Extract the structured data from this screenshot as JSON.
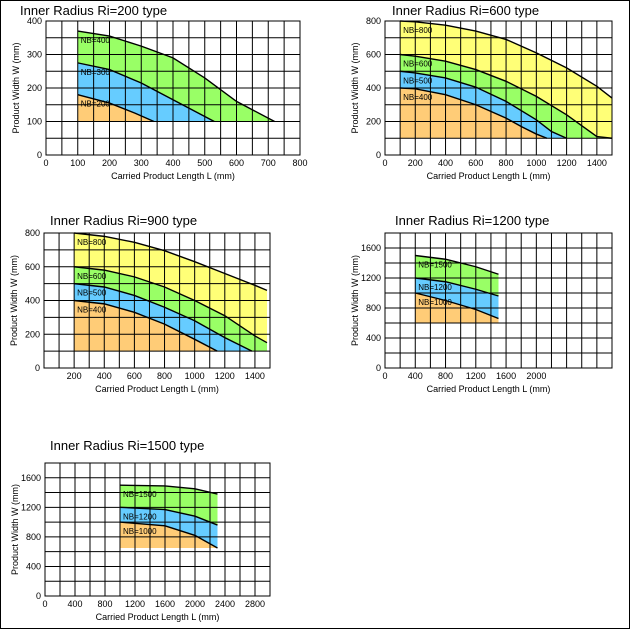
{
  "chart_data": [
    {
      "type": "area",
      "title": "Inner Radius Ri=200 type",
      "xlabel": "Carried Product Length L (mm)",
      "ylabel": "Product Width W (mm)",
      "xlim": [
        0,
        800
      ],
      "ylim": [
        0,
        400
      ],
      "xticks": [
        0,
        100,
        200,
        300,
        400,
        500,
        600,
        700,
        800
      ],
      "yticks": [
        0,
        100,
        200,
        300,
        400
      ],
      "series": [
        {
          "name": "NB=400",
          "color": "#99ff66",
          "x": [
            100,
            200,
            300,
            400,
            500,
            600,
            720
          ],
          "y": [
            370,
            355,
            325,
            290,
            230,
            160,
            100
          ]
        },
        {
          "name": "NB=300",
          "color": "#66ccff",
          "x": [
            100,
            200,
            300,
            400,
            530
          ],
          "y": [
            275,
            255,
            215,
            165,
            100
          ]
        },
        {
          "name": "NB=200",
          "color": "#ffcc77",
          "x": [
            100,
            200,
            280,
            340
          ],
          "y": [
            180,
            155,
            125,
            100
          ]
        }
      ],
      "base": [
        100,
        100
      ]
    },
    {
      "type": "area",
      "title": "Inner Radius Ri=600 type",
      "xlabel": "Carried Product Length L (mm)",
      "ylabel": "Product Width W (mm)",
      "xlim": [
        0,
        1500
      ],
      "ylim": [
        0,
        800
      ],
      "xticks": [
        0,
        200,
        400,
        600,
        800,
        1000,
        1200,
        1400
      ],
      "yticks": [
        0,
        200,
        400,
        600,
        800
      ],
      "series": [
        {
          "name": "NB=800",
          "color": "#ffff77",
          "x": [
            100,
            200,
            400,
            600,
            800,
            1000,
            1200,
            1400,
            1500
          ],
          "y": [
            800,
            795,
            775,
            740,
            690,
            610,
            520,
            410,
            340
          ]
        },
        {
          "name": "NB=600",
          "color": "#99ff66",
          "x": [
            100,
            200,
            400,
            600,
            800,
            1000,
            1200,
            1400,
            1500
          ],
          "y": [
            600,
            590,
            560,
            510,
            440,
            350,
            240,
            110,
            100
          ]
        },
        {
          "name": "NB=500",
          "color": "#66ccff",
          "x": [
            100,
            200,
            400,
            600,
            800,
            1000,
            1100,
            1200
          ],
          "y": [
            500,
            490,
            460,
            405,
            320,
            210,
            140,
            100
          ]
        },
        {
          "name": "NB=400",
          "color": "#ffcc77",
          "x": [
            100,
            200,
            400,
            600,
            800,
            900,
            1000,
            1070
          ],
          "y": [
            400,
            395,
            360,
            300,
            220,
            170,
            125,
            100
          ]
        }
      ],
      "base": [
        100,
        100
      ]
    },
    {
      "type": "area",
      "title": "Inner Radius Ri=900 type",
      "xlabel": "Carried Product Length L (mm)",
      "ylabel": "Product Width W (mm)",
      "xlim": [
        0,
        1500
      ],
      "ylim": [
        0,
        800
      ],
      "xticks": [
        200,
        400,
        600,
        800,
        1000,
        1200,
        1400
      ],
      "yticks": [
        0,
        200,
        400,
        600,
        800
      ],
      "series": [
        {
          "name": "NB=800",
          "color": "#ffff77",
          "x": [
            200,
            400,
            600,
            800,
            1000,
            1200,
            1400,
            1480
          ],
          "y": [
            800,
            780,
            745,
            695,
            630,
            560,
            490,
            460
          ]
        },
        {
          "name": "NB=600",
          "color": "#99ff66",
          "x": [
            200,
            400,
            600,
            800,
            1000,
            1200,
            1400,
            1480
          ],
          "y": [
            600,
            580,
            540,
            480,
            400,
            310,
            190,
            150
          ]
        },
        {
          "name": "NB=500",
          "color": "#66ccff",
          "x": [
            200,
            400,
            600,
            800,
            1000,
            1200,
            1380
          ],
          "y": [
            500,
            480,
            430,
            360,
            280,
            180,
            100
          ]
        },
        {
          "name": "NB=400",
          "color": "#ffcc77",
          "x": [
            200,
            400,
            600,
            800,
            1000,
            1150
          ],
          "y": [
            400,
            380,
            330,
            260,
            170,
            100
          ]
        }
      ],
      "base": [
        100,
        100
      ]
    },
    {
      "type": "area",
      "title": "Inner Radius Ri=1200 type",
      "xlabel": "Carried Product Length L (mm)",
      "ylabel": "Product Width W (mm)",
      "xlim": [
        0,
        3000
      ],
      "ylim": [
        0,
        1800
      ],
      "xticks": [
        0,
        400,
        800,
        1200,
        1600,
        2000
      ],
      "yticks": [
        0,
        400,
        800,
        1200,
        1600
      ],
      "series": [
        {
          "name": "NB=1500",
          "color": "#99ff66",
          "x": [
            400,
            800,
            1200,
            1500
          ],
          "y": [
            1500,
            1450,
            1350,
            1250
          ]
        },
        {
          "name": "NB=1200",
          "color": "#66ccff",
          "x": [
            400,
            800,
            1200,
            1500
          ],
          "y": [
            1200,
            1150,
            1050,
            960
          ]
        },
        {
          "name": "NB=1000",
          "color": "#ffcc77",
          "x": [
            400,
            800,
            1200,
            1500
          ],
          "y": [
            1000,
            900,
            780,
            660
          ]
        }
      ],
      "base": [
        600,
        600
      ]
    },
    {
      "type": "area",
      "title": "Inner Radius Ri=1500 type",
      "xlabel": "Carried Product Length L (mm)",
      "ylabel": "Product Width W (mm)",
      "xlim": [
        0,
        3000
      ],
      "ylim": [
        0,
        1800
      ],
      "xticks": [
        0,
        400,
        800,
        1200,
        1600,
        2000,
        2400,
        2800
      ],
      "yticks": [
        0,
        400,
        800,
        1200,
        1600
      ],
      "series": [
        {
          "name": "NB=1500",
          "color": "#99ff66",
          "x": [
            1000,
            1600,
            2000,
            2300
          ],
          "y": [
            1500,
            1490,
            1450,
            1380
          ]
        },
        {
          "name": "NB=1200",
          "color": "#66ccff",
          "x": [
            1000,
            1600,
            2000,
            2300
          ],
          "y": [
            1200,
            1170,
            1080,
            960
          ]
        },
        {
          "name": "NB=1000",
          "color": "#ffcc77",
          "x": [
            1000,
            1600,
            2000,
            2300
          ],
          "y": [
            1000,
            950,
            820,
            650
          ]
        }
      ],
      "base": [
        650,
        650
      ]
    }
  ]
}
